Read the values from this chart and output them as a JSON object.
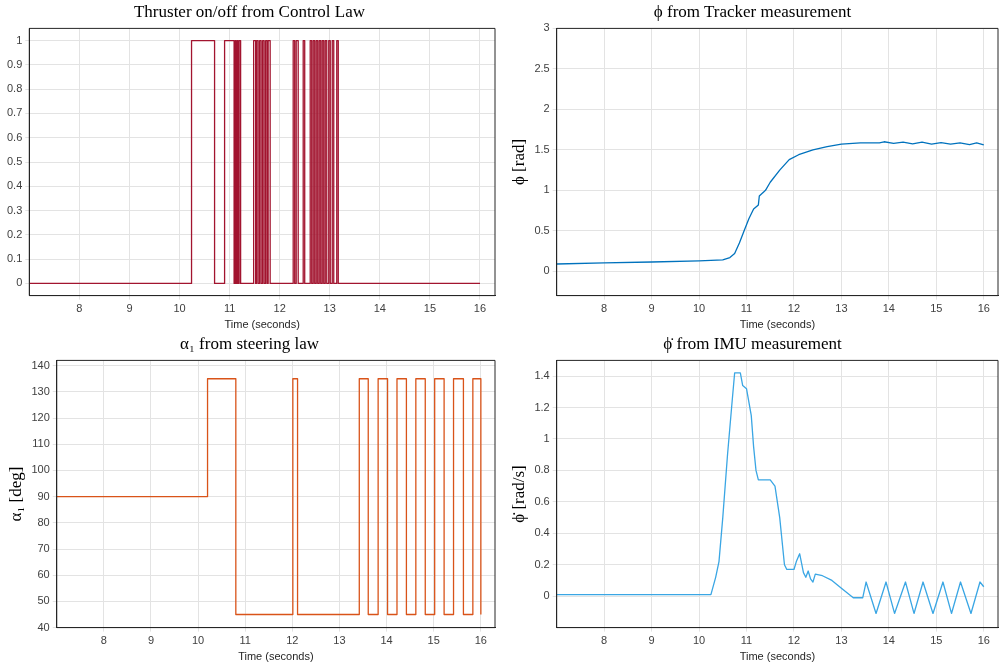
{
  "chart_data": [
    {
      "type": "step",
      "title": "Thruster on/off from Control Law",
      "xlabel": "Time (seconds)",
      "color": "#a2142f",
      "grid": true,
      "xlim": [
        7,
        16.3
      ],
      "xticks": [
        8,
        9,
        10,
        11,
        12,
        13,
        14,
        15,
        16
      ],
      "ylim": [
        -0.05,
        1.05
      ],
      "yticks": [
        0,
        0.1,
        0.2,
        0.3,
        0.4,
        0.5,
        0.6,
        0.7,
        0.8,
        0.9,
        1
      ],
      "x": [
        7.0,
        10.24,
        10.7,
        10.9,
        11.09,
        11.11,
        11.13,
        11.15,
        11.17,
        11.19,
        11.22,
        11.48,
        11.52,
        11.54,
        11.57,
        11.6,
        11.63,
        11.66,
        11.69,
        11.72,
        11.75,
        11.77,
        11.81,
        12.27,
        12.3,
        12.33,
        12.37,
        12.47,
        12.5,
        12.61,
        12.64,
        12.67,
        12.7,
        12.73,
        12.76,
        12.79,
        12.82,
        12.85,
        12.88,
        12.91,
        12.94,
        12.98,
        13.01,
        13.05,
        13.08,
        13.14,
        13.17,
        16.0
      ],
      "values": [
        0,
        1,
        0,
        1,
        0,
        1,
        0,
        1,
        0,
        1,
        0,
        1,
        0,
        1,
        0,
        1,
        0,
        1,
        0,
        1,
        0,
        1,
        0,
        1,
        0,
        1,
        0,
        1,
        0,
        1,
        0,
        1,
        0,
        1,
        0,
        1,
        0,
        1,
        0,
        1,
        0,
        1,
        0,
        1,
        0,
        1,
        0,
        0
      ]
    },
    {
      "type": "line",
      "title": "ϕ from Tracker measurement",
      "xlabel": "Time (seconds)",
      "ylabel": "ϕ [rad]",
      "color": "#0072bd",
      "grid": true,
      "xlim": [
        7,
        16.3
      ],
      "xticks": [
        8,
        9,
        10,
        11,
        12,
        13,
        14,
        15,
        16
      ],
      "ylim": [
        -0.3,
        3
      ],
      "yticks": [
        0,
        0.5,
        1,
        1.5,
        2,
        2.5,
        3
      ],
      "x": [
        7.0,
        8,
        9,
        10,
        10.5,
        10.65,
        10.75,
        10.85,
        10.95,
        11.05,
        11.15,
        11.25,
        11.27,
        11.4,
        11.5,
        11.7,
        11.9,
        12.1,
        12.4,
        12.7,
        13.0,
        13.4,
        13.8,
        13.9,
        14.1,
        14.3,
        14.5,
        14.7,
        14.9,
        15.1,
        15.3,
        15.5,
        15.7,
        15.85,
        16.0
      ],
      "values": [
        0.09,
        0.105,
        0.115,
        0.13,
        0.14,
        0.17,
        0.22,
        0.35,
        0.5,
        0.65,
        0.77,
        0.82,
        0.93,
        1.0,
        1.1,
        1.25,
        1.38,
        1.44,
        1.5,
        1.54,
        1.57,
        1.585,
        1.585,
        1.6,
        1.58,
        1.595,
        1.575,
        1.595,
        1.57,
        1.59,
        1.57,
        1.585,
        1.565,
        1.585,
        1.56
      ]
    },
    {
      "type": "step",
      "title": "α₁ from steering law",
      "xlabel": "Time (seconds)",
      "ylabel": "α₁ [deg]",
      "color": "#d95319",
      "grid": true,
      "xlim": [
        7,
        16.3
      ],
      "xticks": [
        8,
        9,
        10,
        11,
        12,
        13,
        14,
        15,
        16
      ],
      "ylim": [
        40,
        142
      ],
      "yticks": [
        40,
        50,
        60,
        70,
        80,
        90,
        100,
        110,
        120,
        130,
        140
      ],
      "x": [
        7.0,
        10.2,
        10.8,
        12.01,
        12.11,
        13.42,
        13.61,
        13.82,
        14.02,
        14.22,
        14.42,
        14.62,
        14.82,
        15.02,
        15.22,
        15.42,
        15.63,
        15.83,
        16.0
      ],
      "values": [
        90,
        135,
        45,
        135,
        45,
        135,
        45,
        135,
        45,
        135,
        45,
        135,
        45,
        135,
        45,
        135,
        45,
        135,
        45
      ]
    },
    {
      "type": "line",
      "title": "ϕ̇ from IMU measurement",
      "xlabel": "Time (seconds)",
      "ylabel": "ϕ̇ [rad/s]",
      "color": "#3aa6e4",
      "grid": true,
      "xlim": [
        7,
        16.3
      ],
      "xticks": [
        8,
        9,
        10,
        11,
        12,
        13,
        14,
        15,
        16
      ],
      "ylim": [
        -0.2,
        1.5
      ],
      "yticks": [
        0,
        0.2,
        0.4,
        0.6,
        0.8,
        1,
        1.2,
        1.4
      ],
      "x": [
        7,
        10.25,
        10.35,
        10.42,
        10.5,
        10.6,
        10.7,
        10.75,
        10.87,
        10.92,
        11.0,
        11.1,
        11.15,
        11.2,
        11.25,
        11.5,
        11.6,
        11.7,
        11.8,
        11.85,
        12.0,
        12.05,
        12.12,
        12.2,
        12.25,
        12.3,
        12.35,
        12.4,
        12.45,
        12.6,
        12.8,
        13.0,
        13.25,
        13.45,
        13.52,
        13.73,
        13.94,
        14.12,
        14.35,
        14.53,
        14.72,
        14.93,
        15.14,
        15.32,
        15.51,
        15.73,
        15.92,
        16.0
      ],
      "values": [
        0.01,
        0.01,
        0.12,
        0.22,
        0.5,
        0.9,
        1.25,
        1.42,
        1.42,
        1.34,
        1.32,
        1.15,
        0.95,
        0.8,
        0.74,
        0.74,
        0.7,
        0.5,
        0.2,
        0.17,
        0.17,
        0.22,
        0.27,
        0.15,
        0.12,
        0.16,
        0.11,
        0.09,
        0.14,
        0.13,
        0.1,
        0.05,
        -0.01,
        -0.01,
        0.09,
        -0.11,
        0.09,
        -0.11,
        0.09,
        -0.11,
        0.09,
        -0.11,
        0.09,
        -0.11,
        0.09,
        -0.11,
        0.09,
        0.06
      ]
    }
  ]
}
